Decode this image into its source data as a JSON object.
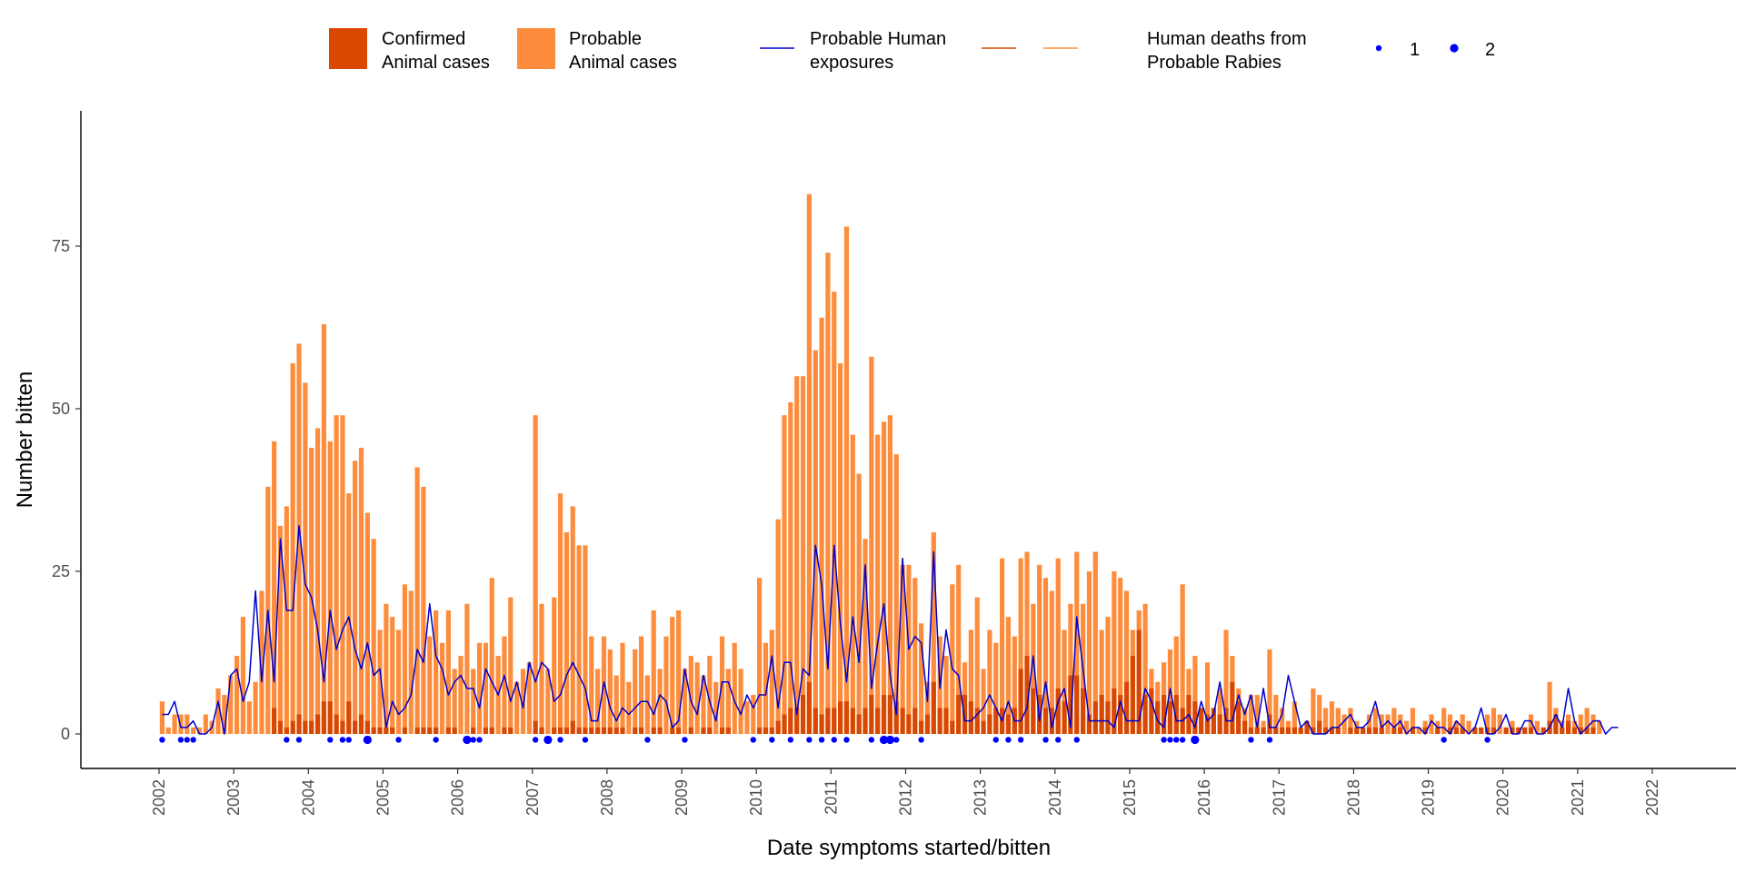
{
  "chart_data": {
    "type": "bar",
    "xlabel": "Date symptoms started/bitten",
    "ylabel": "Number bitten",
    "x_ticks": [
      "2002",
      "2003",
      "2004",
      "2005",
      "2006",
      "2007",
      "2008",
      "2009",
      "2010",
      "2011",
      "2012",
      "2013",
      "2014",
      "2015",
      "2016",
      "2017",
      "2018",
      "2019",
      "2020",
      "2021",
      "2022"
    ],
    "y_ticks": [
      0,
      25,
      50,
      75
    ],
    "xlim": [
      "2001-10",
      "2023-03"
    ],
    "ylim": [
      -5,
      95
    ],
    "start_month": "2002-01",
    "grid": false,
    "legend_position": "top",
    "colors": {
      "confirmed": "#D94801",
      "probable": "#FD8D3C",
      "exposures": "#0000CC",
      "deaths": "#0000FF"
    },
    "series": [
      {
        "name": "Probable Animal cases",
        "kind": "bar",
        "values": [
          5,
          1,
          3,
          3,
          3,
          1,
          1,
          3,
          2,
          7,
          6,
          9,
          12,
          18,
          5,
          8,
          22,
          38,
          45,
          32,
          35,
          57,
          60,
          54,
          44,
          47,
          63,
          45,
          49,
          49,
          37,
          42,
          44,
          34,
          30,
          16,
          20,
          18,
          16,
          23,
          22,
          41,
          38,
          15,
          19,
          14,
          19,
          10,
          12,
          20,
          10,
          14,
          14,
          24,
          12,
          15,
          21,
          8,
          10,
          11,
          49,
          20,
          10,
          21,
          37,
          31,
          35,
          29,
          29,
          15,
          10,
          15,
          13,
          9,
          14,
          8,
          13,
          15,
          9,
          19,
          10,
          15,
          18,
          19,
          10,
          12,
          11,
          9,
          12,
          8,
          15,
          10,
          14,
          10,
          5,
          6,
          24,
          14,
          16,
          33,
          49,
          51,
          55,
          55,
          83,
          59,
          64,
          74,
          68,
          57,
          78,
          46,
          40,
          30,
          58,
          46,
          48,
          49,
          43,
          26,
          26,
          24,
          17,
          8,
          31,
          15,
          12,
          23,
          26,
          11,
          16,
          21,
          10,
          16,
          14,
          27,
          18,
          15,
          27,
          28,
          20,
          26,
          24,
          22,
          27,
          16,
          20,
          28,
          20,
          25,
          28,
          16,
          18,
          25,
          24,
          22,
          16,
          19,
          20,
          10,
          8,
          11,
          13,
          15,
          23,
          10,
          12,
          4,
          11,
          3,
          7,
          16,
          12,
          7,
          4,
          6,
          6,
          2,
          13,
          6,
          4,
          2,
          5,
          1,
          1,
          7,
          6,
          4,
          5,
          4,
          3,
          4,
          2,
          1,
          3,
          4,
          3,
          3,
          4,
          3,
          2,
          4,
          1,
          2,
          3,
          2,
          4,
          3,
          2,
          3,
          2,
          1,
          1,
          3,
          4,
          3,
          1,
          2,
          1,
          1,
          3,
          2,
          1,
          8,
          4,
          2,
          3,
          2,
          3,
          4,
          3,
          2
        ]
      },
      {
        "name": "Confirmed Animal cases",
        "kind": "bar",
        "values": [
          0,
          0,
          0,
          0,
          0,
          0,
          0,
          0,
          0,
          0,
          0,
          0,
          0,
          0,
          0,
          0,
          0,
          0,
          4,
          2,
          1,
          2,
          3,
          2,
          2,
          3,
          5,
          5,
          3,
          2,
          5,
          2,
          3,
          2,
          1,
          1,
          1,
          1,
          0,
          1,
          0,
          1,
          1,
          1,
          1,
          0,
          1,
          1,
          0,
          0,
          1,
          0,
          1,
          1,
          0,
          1,
          1,
          0,
          0,
          0,
          2,
          1,
          0,
          1,
          1,
          1,
          2,
          1,
          1,
          1,
          1,
          1,
          1,
          1,
          1,
          0,
          1,
          1,
          0,
          1,
          1,
          0,
          1,
          1,
          0,
          1,
          0,
          1,
          1,
          0,
          1,
          1,
          0,
          0,
          0,
          0,
          1,
          1,
          1,
          2,
          3,
          4,
          4,
          6,
          8,
          4,
          3,
          4,
          4,
          5,
          5,
          4,
          3,
          4,
          6,
          4,
          6,
          6,
          5,
          4,
          3,
          4,
          2,
          3,
          8,
          4,
          4,
          2,
          6,
          6,
          5,
          4,
          2,
          3,
          4,
          4,
          3,
          4,
          10,
          12,
          7,
          6,
          4,
          4,
          7,
          5,
          9,
          9,
          7,
          3,
          5,
          6,
          5,
          7,
          6,
          8,
          12,
          16,
          6,
          7,
          5,
          6,
          5,
          6,
          4,
          6,
          5,
          4,
          3,
          4,
          3,
          4,
          8,
          5,
          2,
          1,
          1,
          1,
          3,
          1,
          1,
          1,
          1,
          1,
          2,
          1,
          2,
          1,
          1,
          1,
          0,
          1,
          1,
          1,
          1,
          1,
          1,
          0,
          1,
          1,
          0,
          1,
          0,
          1,
          0,
          1,
          0,
          1,
          1,
          1,
          0,
          1,
          1,
          1,
          1,
          0,
          1,
          1,
          1,
          1,
          1,
          0,
          1,
          2,
          3,
          1,
          2,
          1,
          1,
          1,
          1,
          0
        ]
      },
      {
        "name": "Probable Human exposures",
        "kind": "line",
        "values": [
          3,
          3,
          5,
          1,
          1,
          2,
          0,
          0,
          1,
          5,
          0,
          9,
          10,
          5,
          8,
          22,
          8,
          19,
          8,
          30,
          19,
          19,
          32,
          23,
          21,
          16,
          8,
          19,
          13,
          16,
          18,
          13,
          10,
          14,
          9,
          10,
          1,
          5,
          3,
          4,
          6,
          13,
          11,
          20,
          12,
          10,
          6,
          8,
          9,
          7,
          7,
          4,
          10,
          8,
          6,
          9,
          5,
          8,
          4,
          11,
          8,
          11,
          10,
          5,
          6,
          9,
          11,
          9,
          7,
          2,
          2,
          8,
          4,
          2,
          4,
          3,
          4,
          5,
          5,
          3,
          6,
          5,
          1,
          2,
          10,
          5,
          3,
          9,
          5,
          2,
          8,
          8,
          5,
          3,
          6,
          4,
          6,
          6,
          12,
          4,
          11,
          11,
          3,
          10,
          9,
          29,
          23,
          10,
          29,
          17,
          8,
          18,
          11,
          26,
          7,
          14,
          20,
          9,
          3,
          27,
          13,
          15,
          14,
          5,
          28,
          7,
          16,
          10,
          9,
          2,
          2,
          3,
          4,
          6,
          4,
          2,
          5,
          2,
          2,
          4,
          12,
          2,
          8,
          1,
          5,
          7,
          1,
          18,
          10,
          2,
          2,
          2,
          2,
          1,
          5,
          2,
          2,
          2,
          7,
          5,
          2,
          1,
          7,
          2,
          2,
          3,
          1,
          5,
          2,
          3,
          8,
          2,
          2,
          6,
          3,
          6,
          1,
          7,
          1,
          1,
          3,
          9,
          5,
          1,
          2,
          0,
          0,
          0,
          1,
          1,
          2,
          3,
          1,
          1,
          2,
          5,
          1,
          2,
          1,
          2,
          0,
          1,
          1,
          0,
          2,
          1,
          1,
          0,
          2,
          1,
          0,
          1,
          4,
          0,
          0,
          1,
          3,
          0,
          0,
          2,
          2,
          0,
          0,
          1,
          3,
          1,
          7,
          2,
          0,
          1,
          2,
          2,
          0,
          1,
          1
        ]
      },
      {
        "name": "Human deaths from Probable Rabies",
        "kind": "points",
        "months": [
          "2002-01",
          "2002-04",
          "2002-05",
          "2002-06",
          "2003-09",
          "2003-11",
          "2004-04",
          "2004-06",
          "2004-07",
          "2004-10",
          "2005-03",
          "2005-09",
          "2006-02",
          "2006-03",
          "2006-04",
          "2007-01",
          "2007-03",
          "2007-05",
          "2007-09",
          "2008-07",
          "2009-01",
          "2009-12",
          "2010-03",
          "2010-06",
          "2010-09",
          "2010-11",
          "2011-01",
          "2011-03",
          "2011-07",
          "2011-09",
          "2011-10",
          "2011-11",
          "2012-03",
          "2013-03",
          "2013-05",
          "2013-07",
          "2013-11",
          "2014-01",
          "2014-04",
          "2015-06",
          "2015-07",
          "2015-08",
          "2015-09",
          "2015-11",
          "2016-08",
          "2016-11",
          "2019-03",
          "2019-10"
        ],
        "values": [
          1,
          1,
          1,
          1,
          1,
          1,
          1,
          1,
          1,
          2,
          1,
          1,
          2,
          1,
          1,
          1,
          2,
          1,
          1,
          1,
          1,
          1,
          1,
          1,
          1,
          1,
          1,
          1,
          1,
          2,
          2,
          1,
          1,
          1,
          1,
          1,
          1,
          1,
          1,
          1,
          1,
          1,
          1,
          2,
          1,
          1,
          1,
          1
        ]
      }
    ],
    "legend": {
      "confirmed_line1": "Confirmed",
      "confirmed_line2": "Animal cases",
      "probable_line1": "Probable",
      "probable_line2": "Animal cases",
      "exposure_line1": "Probable Human",
      "exposure_line2": "exposures",
      "deaths_line1": "Human deaths from",
      "deaths_line2": "Probable Rabies",
      "size1_label": "1",
      "size2_label": "2"
    }
  }
}
